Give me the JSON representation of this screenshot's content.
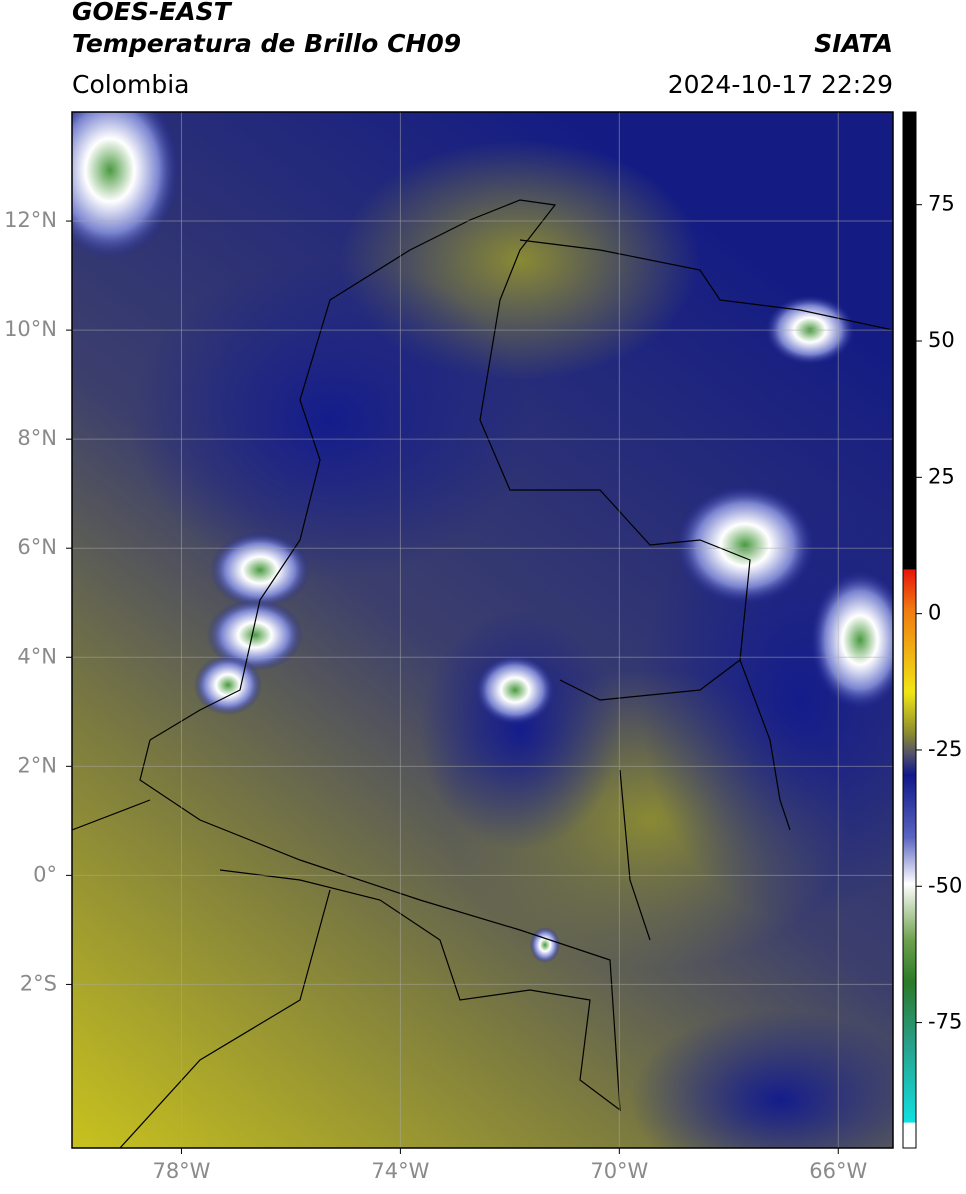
{
  "header": {
    "title": "GOES-EAST",
    "subtitle": "Temperatura de Brillo CH09",
    "source": "SIATA",
    "region": "Colombia",
    "timestamp": "2024-10-17 22:29"
  },
  "map": {
    "lonlim": [
      -80,
      -65
    ],
    "latlim": [
      -5,
      14
    ],
    "lat_ticks": [
      {
        "value": 12,
        "label": "12°N"
      },
      {
        "value": 10,
        "label": "10°N"
      },
      {
        "value": 8,
        "label": "8°N"
      },
      {
        "value": 6,
        "label": "6°N"
      },
      {
        "value": 4,
        "label": "4°N"
      },
      {
        "value": 2,
        "label": "2°N"
      },
      {
        "value": 0,
        "label": "0°"
      },
      {
        "value": -2,
        "label": "2°S"
      }
    ],
    "lon_ticks": [
      {
        "value": -78,
        "label": "78°W"
      },
      {
        "value": -74,
        "label": "74°W"
      },
      {
        "value": -70,
        "label": "70°W"
      },
      {
        "value": -66,
        "label": "66°W"
      }
    ]
  },
  "colorbar": {
    "lim": [
      -98,
      92
    ],
    "ticks": [
      75,
      50,
      25,
      0,
      -25,
      -50,
      -75
    ]
  }
}
